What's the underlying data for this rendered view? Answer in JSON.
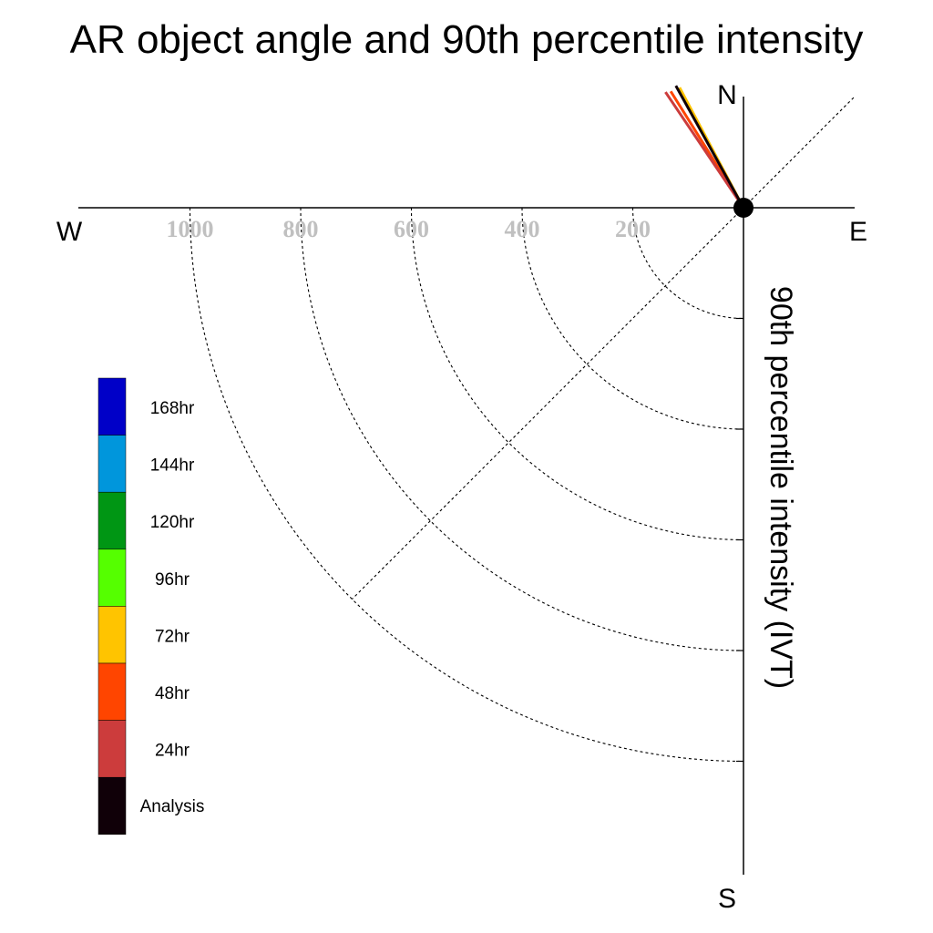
{
  "chart_data": {
    "type": "polar-quadrant",
    "title": "AR object angle and 90th percentile intensity",
    "ylabel": "90th percentile intensity (IVT)",
    "compass": {
      "north": "N",
      "south": "S",
      "east": "E",
      "west": "W"
    },
    "radial_ticks": [
      200,
      400,
      600,
      800,
      1000
    ],
    "radial_tick_labels": [
      "200",
      "400",
      "600",
      "800",
      "1000"
    ],
    "rlim": [
      0,
      1000
    ],
    "grid": true,
    "legend_placement": "left",
    "legend": [
      {
        "label": "168hr",
        "color": "#0000C8"
      },
      {
        "label": "144hr",
        "color": "#0096DC"
      },
      {
        "label": "120hr",
        "color": "#009614"
      },
      {
        "label": "96hr",
        "color": "#55FF00"
      },
      {
        "label": "72hr",
        "color": "#FFC400"
      },
      {
        "label": "48hr",
        "color": "#FF4500"
      },
      {
        "label": "24hr",
        "color": "#CC3C3C"
      },
      {
        "label": "Analysis",
        "color": "#100008"
      }
    ],
    "series": [
      {
        "name": "Analysis",
        "angle_deg": 331,
        "value": 252,
        "color": "#100008"
      },
      {
        "name": "24hr",
        "angle_deg": 326,
        "value": 252,
        "color": "#CC3C3C"
      },
      {
        "name": "48hr",
        "angle_deg": 328,
        "value": 248,
        "color": "#FF4500"
      },
      {
        "name": "72hr",
        "angle_deg": 332,
        "value": 246,
        "color": "#FFC400"
      }
    ]
  }
}
